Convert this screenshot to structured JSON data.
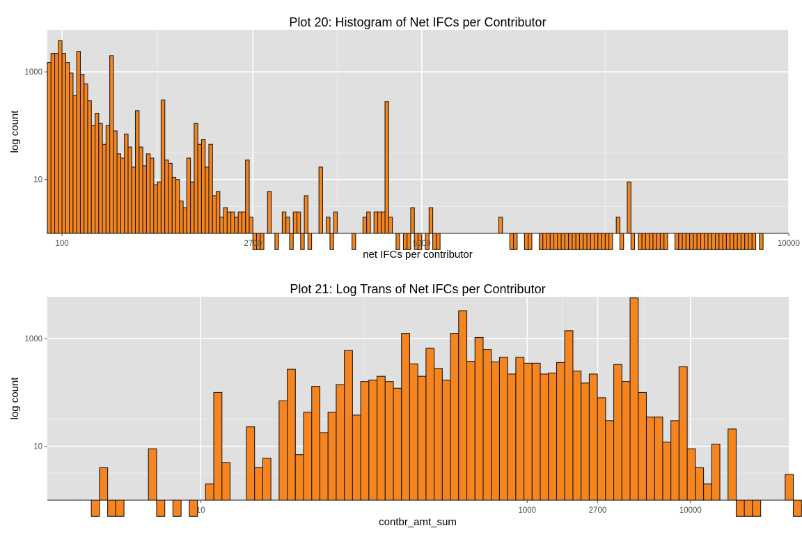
{
  "colors": {
    "panel_bg": "#e0e0e0",
    "grid_major": "#ffffff",
    "grid_minor": "#ebebeb",
    "bar_fill": "#f6851f",
    "bar_stroke": "#1a1a1a"
  },
  "chart_data": [
    {
      "type": "bar",
      "title": "Plot 20: Histogram of Net IFCs per Contributor",
      "xlabel": "net IFCs per contributor",
      "ylabel": "log count",
      "x_scale": "linear",
      "y_scale": "log10",
      "xlim": [
        -100,
        10000
      ],
      "ylim": [
        1,
        6000
      ],
      "x_ticks": [
        100,
        2700,
        5000,
        10000
      ],
      "y_ticks": [
        10,
        1000
      ],
      "grid": true,
      "bin_width": 50,
      "bins_start": -100,
      "counts": [
        1500,
        2200,
        2200,
        3800,
        2200,
        1500,
        950,
        360,
        2400,
        900,
        600,
        290,
        100,
        170,
        110,
        45,
        100,
        2000,
        80,
        30,
        25,
        70,
        40,
        17,
        190,
        40,
        18,
        30,
        25,
        8,
        9,
        300,
        23,
        20,
        11,
        10,
        4,
        3,
        25,
        9,
        110,
        45,
        55,
        17,
        45,
        5,
        6,
        2,
        3,
        2.5,
        2.5,
        2,
        2.5,
        2.5,
        23,
        2,
        0.5,
        0.5,
        0.5,
        0,
        6,
        0,
        0.5,
        0,
        2.5,
        2,
        0.5,
        2.5,
        2.5,
        0.5,
        5,
        0.5,
        0,
        0,
        17,
        0,
        2,
        0.5,
        2.5,
        0,
        0,
        0,
        0,
        0.5,
        0,
        0,
        2,
        2.5,
        0,
        2.5,
        2.5,
        2.5,
        280,
        2,
        0,
        0.5,
        0,
        0.5,
        0.5,
        3,
        0.5,
        0.5,
        0,
        0.5,
        3,
        0.5,
        0.5,
        0,
        0,
        0,
        0,
        0,
        0,
        0,
        0,
        0,
        0,
        0,
        0,
        0,
        0,
        0,
        0,
        2,
        0,
        0,
        0.5,
        0.5,
        0,
        0,
        0.5,
        0.5,
        0,
        0,
        0.5,
        0.5,
        0.5,
        0.5,
        0.5,
        0.5,
        0.5,
        0.5,
        0.5,
        0.5,
        0.5,
        0.5,
        0.5,
        0.5,
        0.5,
        0.5,
        0.5,
        0.5,
        0.5,
        0.5,
        0,
        2,
        0.5,
        0,
        9,
        0.5,
        0,
        0.5,
        0.5,
        0.5,
        0.5,
        0.5,
        0.5,
        0.5,
        0.5,
        0,
        0,
        0.5,
        0.5,
        0.5,
        0.5,
        0.5,
        0.5,
        0.5,
        0.5,
        0.5,
        0.5,
        0.5,
        0.5,
        0.5,
        0.5,
        0.5,
        0.5,
        0.5,
        0.5,
        0.5,
        0.5,
        0.5,
        0.5,
        0,
        0.5
      ]
    },
    {
      "type": "bar",
      "title": "Plot 21: Log Trans of Net IFCs per Contributor",
      "xlabel": "contbr_amt_sum",
      "ylabel": "log count",
      "x_scale": "log10",
      "y_scale": "log10",
      "xlim": [
        1.15,
        40000
      ],
      "ylim": [
        1,
        6000
      ],
      "x_ticks": [
        10,
        1000,
        2700,
        10000
      ],
      "y_ticks": [
        10,
        1000
      ],
      "grid": true,
      "bins_start_log10": 0.33,
      "bin_width_log10": 0.05,
      "counts": [
        0.5,
        4,
        0.5,
        0.5,
        0,
        0,
        0,
        9,
        0.5,
        0,
        0.5,
        0,
        0.5,
        0,
        2,
        100,
        5,
        0,
        0,
        23,
        4,
        6,
        0,
        70,
        270,
        7,
        43,
        130,
        18,
        43,
        140,
        600,
        38,
        160,
        170,
        200,
        160,
        120,
        1250,
        340,
        200,
        660,
        280,
        170,
        1250,
        3300,
        380,
        1050,
        630,
        370,
        450,
        220,
        450,
        350,
        350,
        220,
        230,
        360,
        1400,
        250,
        150,
        220,
        80,
        30,
        330,
        160,
        5700,
        100,
        35,
        35,
        12,
        30,
        300,
        9,
        4,
        2,
        11,
        0,
        21,
        0.5,
        0.5,
        0.5,
        0,
        0,
        0,
        3,
        0.5
      ]
    }
  ]
}
